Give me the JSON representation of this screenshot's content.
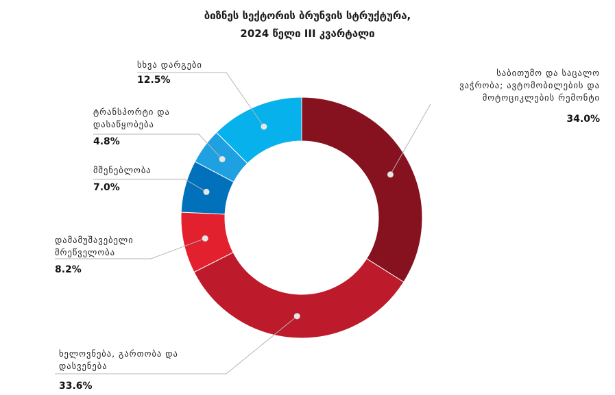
{
  "title": {
    "line1": "ბიზნეს სექტორის ბრუნვის სტრუქტურა,",
    "line2": "2024 წელი III კვარტალი"
  },
  "chart_data": {
    "type": "pie",
    "donut": true,
    "categories": [
      "საბითუმო და საცალო ვაჭრობა; ავტომობილების და მოტოციკლების რემონტი",
      "ხელოვნება, გართობა და დასვენება",
      "დამამუშავებელი მრეწველობა",
      "მშენებლობა",
      "ტრანსპორტი და დასაწყობება",
      "სხვა დარგები"
    ],
    "values": [
      34.0,
      33.6,
      8.2,
      7.0,
      4.8,
      12.5
    ],
    "value_labels": [
      "34.0%",
      "33.6%",
      "8.2%",
      "7.0%",
      "4.8%",
      "12.5%"
    ],
    "colors": [
      "#85121e",
      "#bd1a2b",
      "#e3202e",
      "#0271bb",
      "#1fa0e1",
      "#07b1ec"
    ]
  },
  "labels": {
    "trade": [
      "საბითუმო და საცალო",
      "ვაჭრობა; ავტომობილების და",
      "მოტოციკლების რემონტი"
    ],
    "arts": [
      "ხელოვნება, გართობა და",
      "დასვენება"
    ],
    "manuf": [
      "დამამუშავებელი",
      "მრეწველობა"
    ],
    "constr": [
      "მშენებლობა"
    ],
    "transport": [
      "ტრანსპორტი და",
      "დასაწყობება"
    ],
    "other": [
      "სხვა დარგები"
    ]
  }
}
